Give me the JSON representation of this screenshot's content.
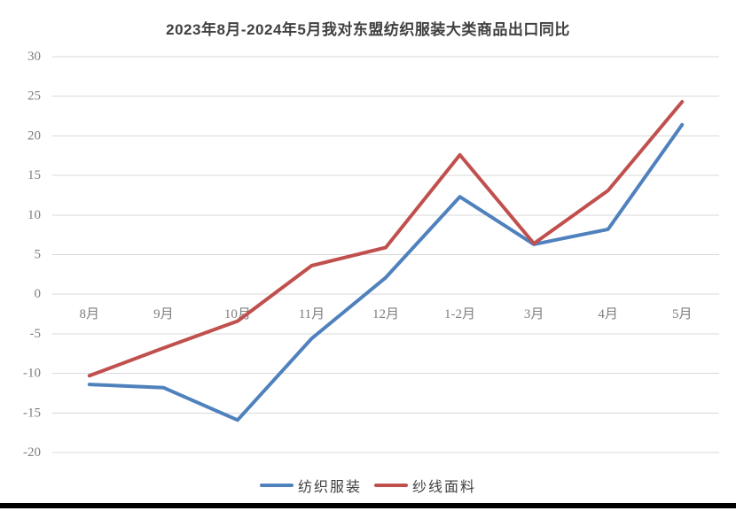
{
  "chart_data": {
    "type": "line",
    "title": "2023年8月-2024年5月我对东盟纺织服装大类商品出口同比",
    "categories": [
      "8月",
      "9月",
      "10月",
      "11月",
      "12月",
      "1-2月",
      "3月",
      "4月",
      "5月"
    ],
    "series": [
      {
        "name": "纺织服装",
        "color": "#4F81BD",
        "values": [
          -11.4,
          -11.8,
          -15.9,
          -5.6,
          2.1,
          12.3,
          6.3,
          8.2,
          21.4
        ]
      },
      {
        "name": "纱线面料",
        "color": "#C0504D",
        "values": [
          -10.3,
          -6.8,
          -3.4,
          3.6,
          5.9,
          17.6,
          6.4,
          13.1,
          24.3
        ]
      }
    ],
    "xlabel": "",
    "ylabel": "",
    "ylim": [
      -20,
      30
    ],
    "y_ticks": [
      30,
      25,
      20,
      15,
      10,
      5,
      0,
      -5,
      -10,
      -15,
      -20
    ],
    "grid": true,
    "legend_position": "bottom",
    "colors": {
      "gridline": "#D9D9D9",
      "axis_labels": "#7F7F7F",
      "title": "#404040",
      "legend_text": "#404040",
      "bottom_bar": "#000000"
    }
  }
}
